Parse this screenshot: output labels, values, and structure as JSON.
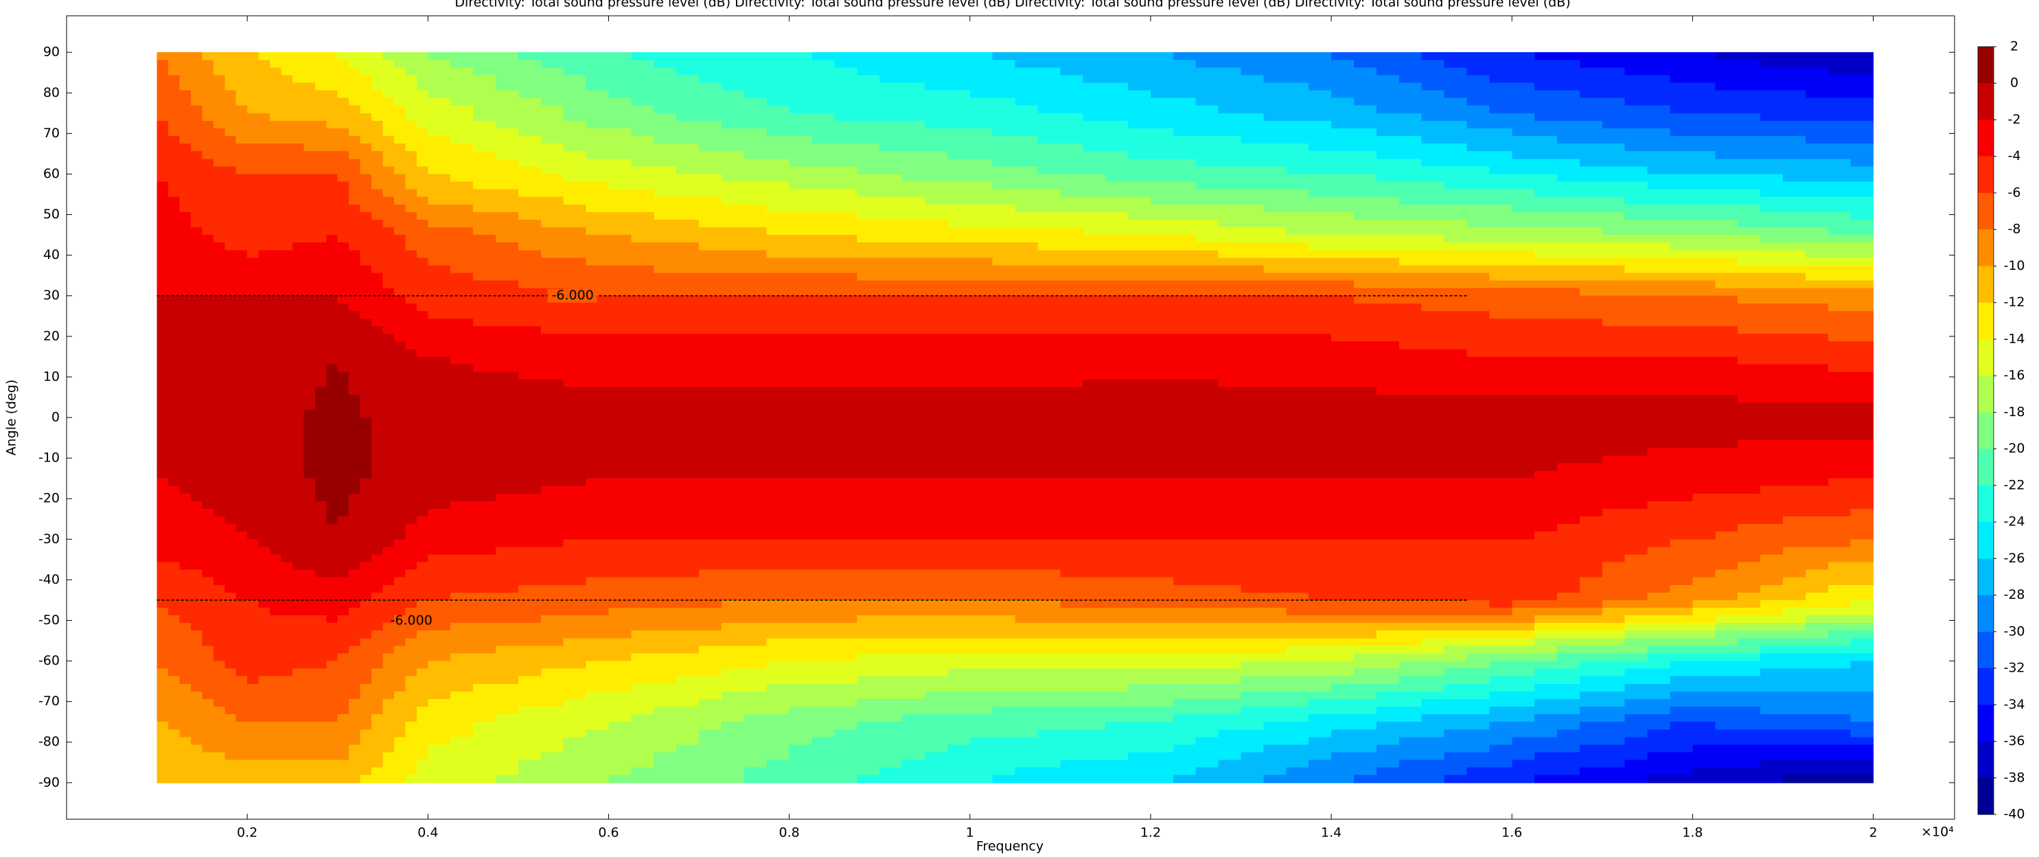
{
  "chart_data": {
    "type": "contour",
    "title": "Directivity: Total sound pressure level (dB)  Directivity: Total sound pressure level (dB)  Directivity: Total sound pressure level (dB)  Directivity: Total sound pressure level (dB)",
    "xlabel": "Frequency",
    "ylabel": "Angle (deg)",
    "x_exponent_label": "×10⁴",
    "colormap": "jet",
    "x": [
      1000,
      2000,
      3000,
      4000,
      6000,
      8000,
      10000,
      12000,
      14000,
      16000,
      18000,
      20000
    ],
    "y": [
      90,
      75,
      60,
      45,
      30,
      15,
      0,
      -15,
      -30,
      -45,
      -60,
      -75,
      -90
    ],
    "z": [
      [
        -8,
        -12,
        -14,
        -18,
        -22,
        -24,
        -26,
        -28,
        -30,
        -34,
        -36,
        -38
      ],
      [
        -6,
        -10,
        -11,
        -15,
        -19,
        -22,
        -23,
        -25,
        -27,
        -30,
        -32,
        -33
      ],
      [
        -4,
        -6,
        -6,
        -12,
        -15,
        -17,
        -19,
        -21,
        -22,
        -24,
        -26,
        -27
      ],
      [
        -3,
        -5,
        -4,
        -7,
        -10,
        -12,
        -13,
        -14,
        -16,
        -17,
        -18,
        -20
      ],
      [
        -2,
        -2,
        -2,
        -5,
        -6,
        -6,
        -6,
        -6,
        -6,
        -7,
        -8,
        -9
      ],
      [
        -1,
        -1,
        0,
        -2,
        -3,
        -3,
        -3,
        -3,
        -3,
        -4,
        -4,
        -5
      ],
      [
        -1,
        -1,
        0.5,
        -1,
        -1,
        -1,
        -1,
        -0.5,
        -1,
        -1,
        -1,
        -1
      ],
      [
        -2,
        -1,
        0.5,
        -1,
        -2,
        -2,
        -2,
        -2,
        -2,
        -2,
        -3,
        -4
      ],
      [
        -3,
        -2,
        0,
        -3,
        -4,
        -4,
        -4,
        -4,
        -4,
        -4,
        -6,
        -8
      ],
      [
        -6,
        -4,
        -3,
        -6,
        -7,
        -8,
        -8,
        -7,
        -6,
        -5,
        -9,
        -14
      ],
      [
        -8,
        -5,
        -6,
        -10,
        -12,
        -14,
        -15,
        -15,
        -16,
        -20,
        -24,
        -26
      ],
      [
        -10,
        -8,
        -8,
        -13,
        -16,
        -19,
        -21,
        -22,
        -25,
        -28,
        -32,
        -30
      ],
      [
        -12,
        -11,
        -11,
        -15,
        -18,
        -21,
        -24,
        -26,
        -30,
        -34,
        -37,
        -40
      ]
    ],
    "xlim": [
      0,
      20900
    ],
    "ylim": [
      -99,
      99
    ],
    "xticks": [
      {
        "value": 2000,
        "label": "0.2"
      },
      {
        "value": 4000,
        "label": "0.4"
      },
      {
        "value": 6000,
        "label": "0.6"
      },
      {
        "value": 8000,
        "label": "0.8"
      },
      {
        "value": 10000,
        "label": "1"
      },
      {
        "value": 12000,
        "label": "1.2"
      },
      {
        "value": 14000,
        "label": "1.4"
      },
      {
        "value": 16000,
        "label": "1.6"
      },
      {
        "value": 18000,
        "label": "1.8"
      },
      {
        "value": 20000,
        "label": "2"
      }
    ],
    "yticks": [
      90,
      80,
      70,
      60,
      50,
      40,
      30,
      20,
      10,
      0,
      -10,
      -20,
      -30,
      -40,
      -50,
      -60,
      -70,
      -80,
      -90
    ],
    "clim": [
      -40,
      2
    ],
    "cticks": [
      2,
      0,
      -2,
      -4,
      -6,
      -8,
      -10,
      -12,
      -14,
      -16,
      -18,
      -20,
      -22,
      -24,
      -26,
      -28,
      -30,
      -32,
      -34,
      -36,
      -38,
      -40
    ],
    "reference_lines": [
      {
        "y": 30,
        "x": [
          1000,
          15500
        ],
        "label": "-6.000"
      },
      {
        "y": -45,
        "x": [
          1000,
          15500
        ],
        "label": "-6.000"
      }
    ]
  }
}
